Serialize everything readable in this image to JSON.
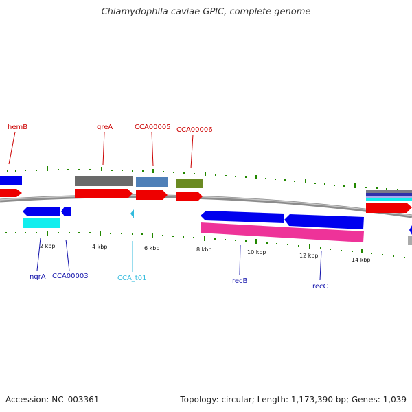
{
  "title": "Chlamydophila caviae GPIC, complete genome",
  "footer": {
    "accession": "Accession: NC_003361",
    "summary": "Topology: circular; Length: 1,173,390 bp; Genes: 1,039"
  },
  "scale_labels": [
    "2 kbp",
    "4 kbp",
    "6 kbp",
    "8 kbp",
    "10 kbp",
    "12 kbp",
    "14 kbp"
  ],
  "gene_labels": {
    "top": [
      "hemB",
      "greA",
      "CCA00005",
      "CCA00006"
    ],
    "bottom": [
      "nqrA",
      "CCA00003",
      "CCA_t01",
      "recB",
      "recC"
    ]
  },
  "colors": {
    "forward_label": "#cc0000",
    "reverse_label": "#1010aa",
    "trna_label": "#33bbdd",
    "cds": "#ee0000",
    "reverse_cds": "#0000ee",
    "tick": "#228800",
    "backbone": "#888888",
    "magenta": "#ee3399",
    "cyan": "#11eeee"
  }
}
